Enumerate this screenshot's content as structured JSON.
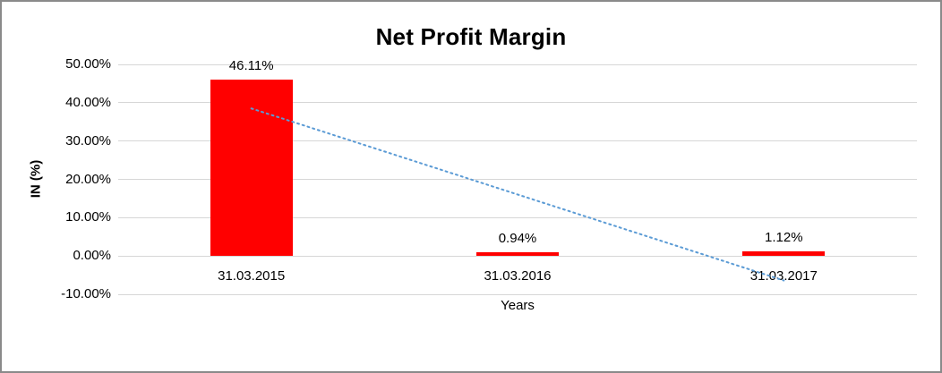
{
  "chart_data": {
    "type": "bar",
    "title": "Net Profit Margin",
    "xlabel": "Years",
    "ylabel": "IN (%)",
    "categories": [
      "31.03.2015",
      "31.03.2016",
      "31.03.2017"
    ],
    "values": [
      46.11,
      0.94,
      1.12
    ],
    "data_labels": [
      "46.11%",
      "0.94%",
      "1.12%"
    ],
    "ylim": [
      -10,
      50
    ],
    "ytick_step": 10,
    "ytick_values": [
      50,
      40,
      30,
      20,
      10,
      0,
      -10
    ],
    "ytick_labels": [
      "50.00%",
      "40.00%",
      "30.00%",
      "20.00%",
      "10.00%",
      "0.00%",
      "-10.00%"
    ],
    "grid": "horizontal",
    "legend": "none",
    "bar_color": "#ff0000",
    "trendline": {
      "type": "linear",
      "style": "dotted",
      "color": "#5b9bd5",
      "start_value": 38.5,
      "end_value": -6.4
    }
  }
}
